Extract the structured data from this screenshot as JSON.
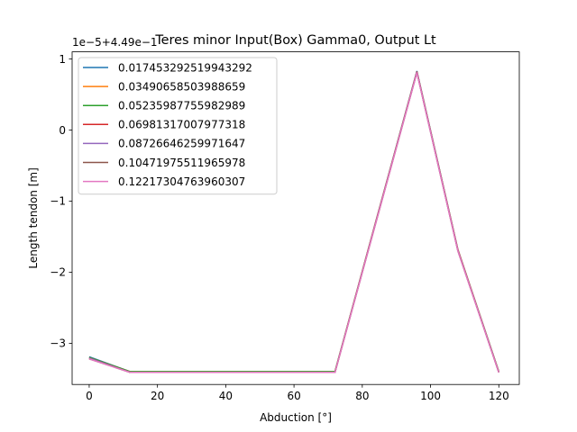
{
  "chart_data": {
    "type": "line",
    "title": "Teres minor Input(Box) Gamma0, Output Lt",
    "xlabel": "Abduction [°]",
    "ylabel": "Length tendon [m]",
    "offset_text": "1e−5+4.49e−1",
    "xlim": [
      -5,
      126
    ],
    "ylim": [
      -3.58,
      1.1
    ],
    "xticks": [
      0,
      20,
      40,
      60,
      80,
      100,
      120
    ],
    "xtick_labels": [
      "0",
      "20",
      "40",
      "60",
      "80",
      "100",
      "120"
    ],
    "yticks": [
      1,
      0,
      -1,
      -2,
      -3
    ],
    "ytick_labels": [
      "1",
      "0",
      "−1",
      "−2",
      "−3"
    ],
    "grid": false,
    "legend_position": "upper-left",
    "x": [
      0,
      12,
      24,
      36,
      48,
      60,
      72,
      84,
      96,
      108,
      120
    ],
    "series": [
      {
        "name": "0.017453292519943292",
        "color": "#1f77b4",
        "values": [
          -3.19,
          -3.4,
          -3.4,
          -3.4,
          -3.4,
          -3.4,
          -3.4,
          -1.28,
          0.83,
          -1.68,
          -3.4
        ]
      },
      {
        "name": "0.03490658503988659",
        "color": "#ff7f0e",
        "values": [
          -3.2,
          -3.4,
          -3.4,
          -3.4,
          -3.4,
          -3.4,
          -3.4,
          -1.28,
          0.82,
          -1.68,
          -3.4
        ]
      },
      {
        "name": "0.05235987755982989",
        "color": "#2ca02c",
        "values": [
          -3.2,
          -3.4,
          -3.4,
          -3.4,
          -3.4,
          -3.4,
          -3.4,
          -1.29,
          0.82,
          -1.69,
          -3.4
        ]
      },
      {
        "name": "0.06981317007977318",
        "color": "#d62728",
        "values": [
          -3.21,
          -3.41,
          -3.41,
          -3.41,
          -3.41,
          -3.41,
          -3.41,
          -1.29,
          0.82,
          -1.69,
          -3.41
        ]
      },
      {
        "name": "0.08726646259971647",
        "color": "#9467bd",
        "values": [
          -3.21,
          -3.41,
          -3.41,
          -3.41,
          -3.41,
          -3.41,
          -3.41,
          -1.29,
          0.81,
          -1.69,
          -3.41
        ]
      },
      {
        "name": "0.10471975511965978",
        "color": "#8c564b",
        "values": [
          -3.22,
          -3.41,
          -3.41,
          -3.41,
          -3.41,
          -3.41,
          -3.41,
          -1.3,
          0.81,
          -1.7,
          -3.41
        ]
      },
      {
        "name": "0.12217304763960307",
        "color": "#e377c2",
        "values": [
          -3.22,
          -3.41,
          -3.41,
          -3.41,
          -3.41,
          -3.41,
          -3.41,
          -1.3,
          0.81,
          -1.7,
          -3.41
        ]
      }
    ]
  }
}
